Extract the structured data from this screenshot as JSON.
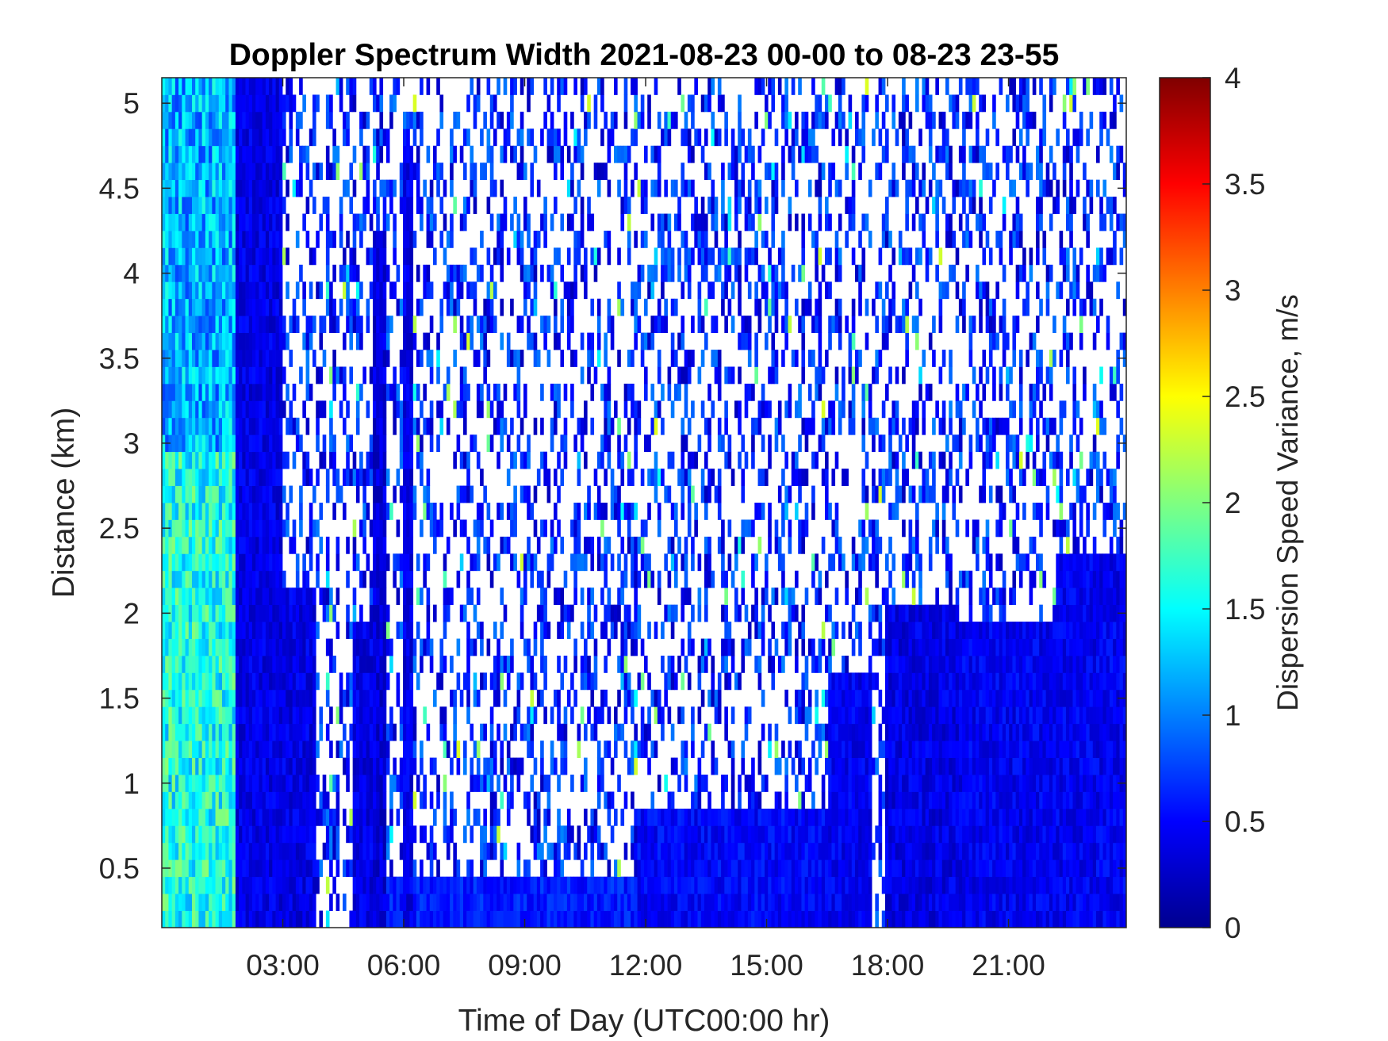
{
  "chart_data": {
    "type": "heatmap",
    "title": "Doppler Spectrum Width 2021-08-23 00-00 to 08-23 23-55",
    "xlabel": "Time of Day (UTC00:00 hr)",
    "ylabel": "Distance (km)",
    "colorbar_label": "Dispersion Speed Variance, m/s",
    "colormap": "jet",
    "x_range_hours": [
      0,
      23.92
    ],
    "ylim": [
      0.15,
      5.15
    ],
    "clim": [
      0,
      4
    ],
    "x_ticks": [
      {
        "value": 3,
        "label": "03:00"
      },
      {
        "value": 6,
        "label": "06:00"
      },
      {
        "value": 9,
        "label": "09:00"
      },
      {
        "value": 12,
        "label": "12:00"
      },
      {
        "value": 15,
        "label": "15:00"
      },
      {
        "value": 18,
        "label": "18:00"
      },
      {
        "value": 21,
        "label": "21:00"
      }
    ],
    "y_ticks": [
      {
        "value": 0.5,
        "label": "0.5"
      },
      {
        "value": 1,
        "label": "1"
      },
      {
        "value": 1.5,
        "label": "1.5"
      },
      {
        "value": 2,
        "label": "2"
      },
      {
        "value": 2.5,
        "label": "2.5"
      },
      {
        "value": 3,
        "label": "3"
      },
      {
        "value": 3.5,
        "label": "3.5"
      },
      {
        "value": 4,
        "label": "4"
      },
      {
        "value": 4.5,
        "label": "4.5"
      },
      {
        "value": 5,
        "label": "5"
      }
    ],
    "colorbar_ticks": [
      {
        "value": 0,
        "label": "0"
      },
      {
        "value": 0.5,
        "label": "0.5"
      },
      {
        "value": 1,
        "label": "1"
      },
      {
        "value": 1.5,
        "label": "1.5"
      },
      {
        "value": 2,
        "label": "2"
      },
      {
        "value": 2.5,
        "label": "2.5"
      },
      {
        "value": 3,
        "label": "3"
      },
      {
        "value": 3.5,
        "label": "3.5"
      },
      {
        "value": 4,
        "label": "4"
      }
    ],
    "dense_regions": [
      {
        "t_start": 0.0,
        "t_end": 1.8,
        "h_top": 5.15,
        "value": 1.3
      },
      {
        "t_start": 1.8,
        "t_end": 3.8,
        "h_top": 2.1,
        "value": 0.4
      },
      {
        "t_start": 1.8,
        "t_end": 3.0,
        "h_top": 5.15,
        "value": 0.4
      },
      {
        "t_start": 4.7,
        "t_end": 5.3,
        "h_top": 1.95,
        "value": 0.4
      },
      {
        "t_start": 5.2,
        "t_end": 5.6,
        "h_top": 4.3,
        "value": 0.35
      },
      {
        "t_start": 6.0,
        "t_end": 6.2,
        "h_top": 4.8,
        "value": 0.4
      },
      {
        "t_start": 5.6,
        "t_end": 11.8,
        "h_top": 0.45,
        "value": 0.6
      },
      {
        "t_start": 11.8,
        "t_end": 16.5,
        "h_top": 0.85,
        "value": 0.5
      },
      {
        "t_start": 16.5,
        "t_end": 17.6,
        "h_top": 1.65,
        "value": 0.45
      },
      {
        "t_start": 17.9,
        "t_end": 19.8,
        "h_top": 2.0,
        "value": 0.4
      },
      {
        "t_start": 19.8,
        "t_end": 22.2,
        "h_top": 1.95,
        "value": 0.45
      },
      {
        "t_start": 22.2,
        "t_end": 23.92,
        "h_top": 2.3,
        "value": 0.45
      }
    ],
    "sparse_background_value": 0.5
  }
}
